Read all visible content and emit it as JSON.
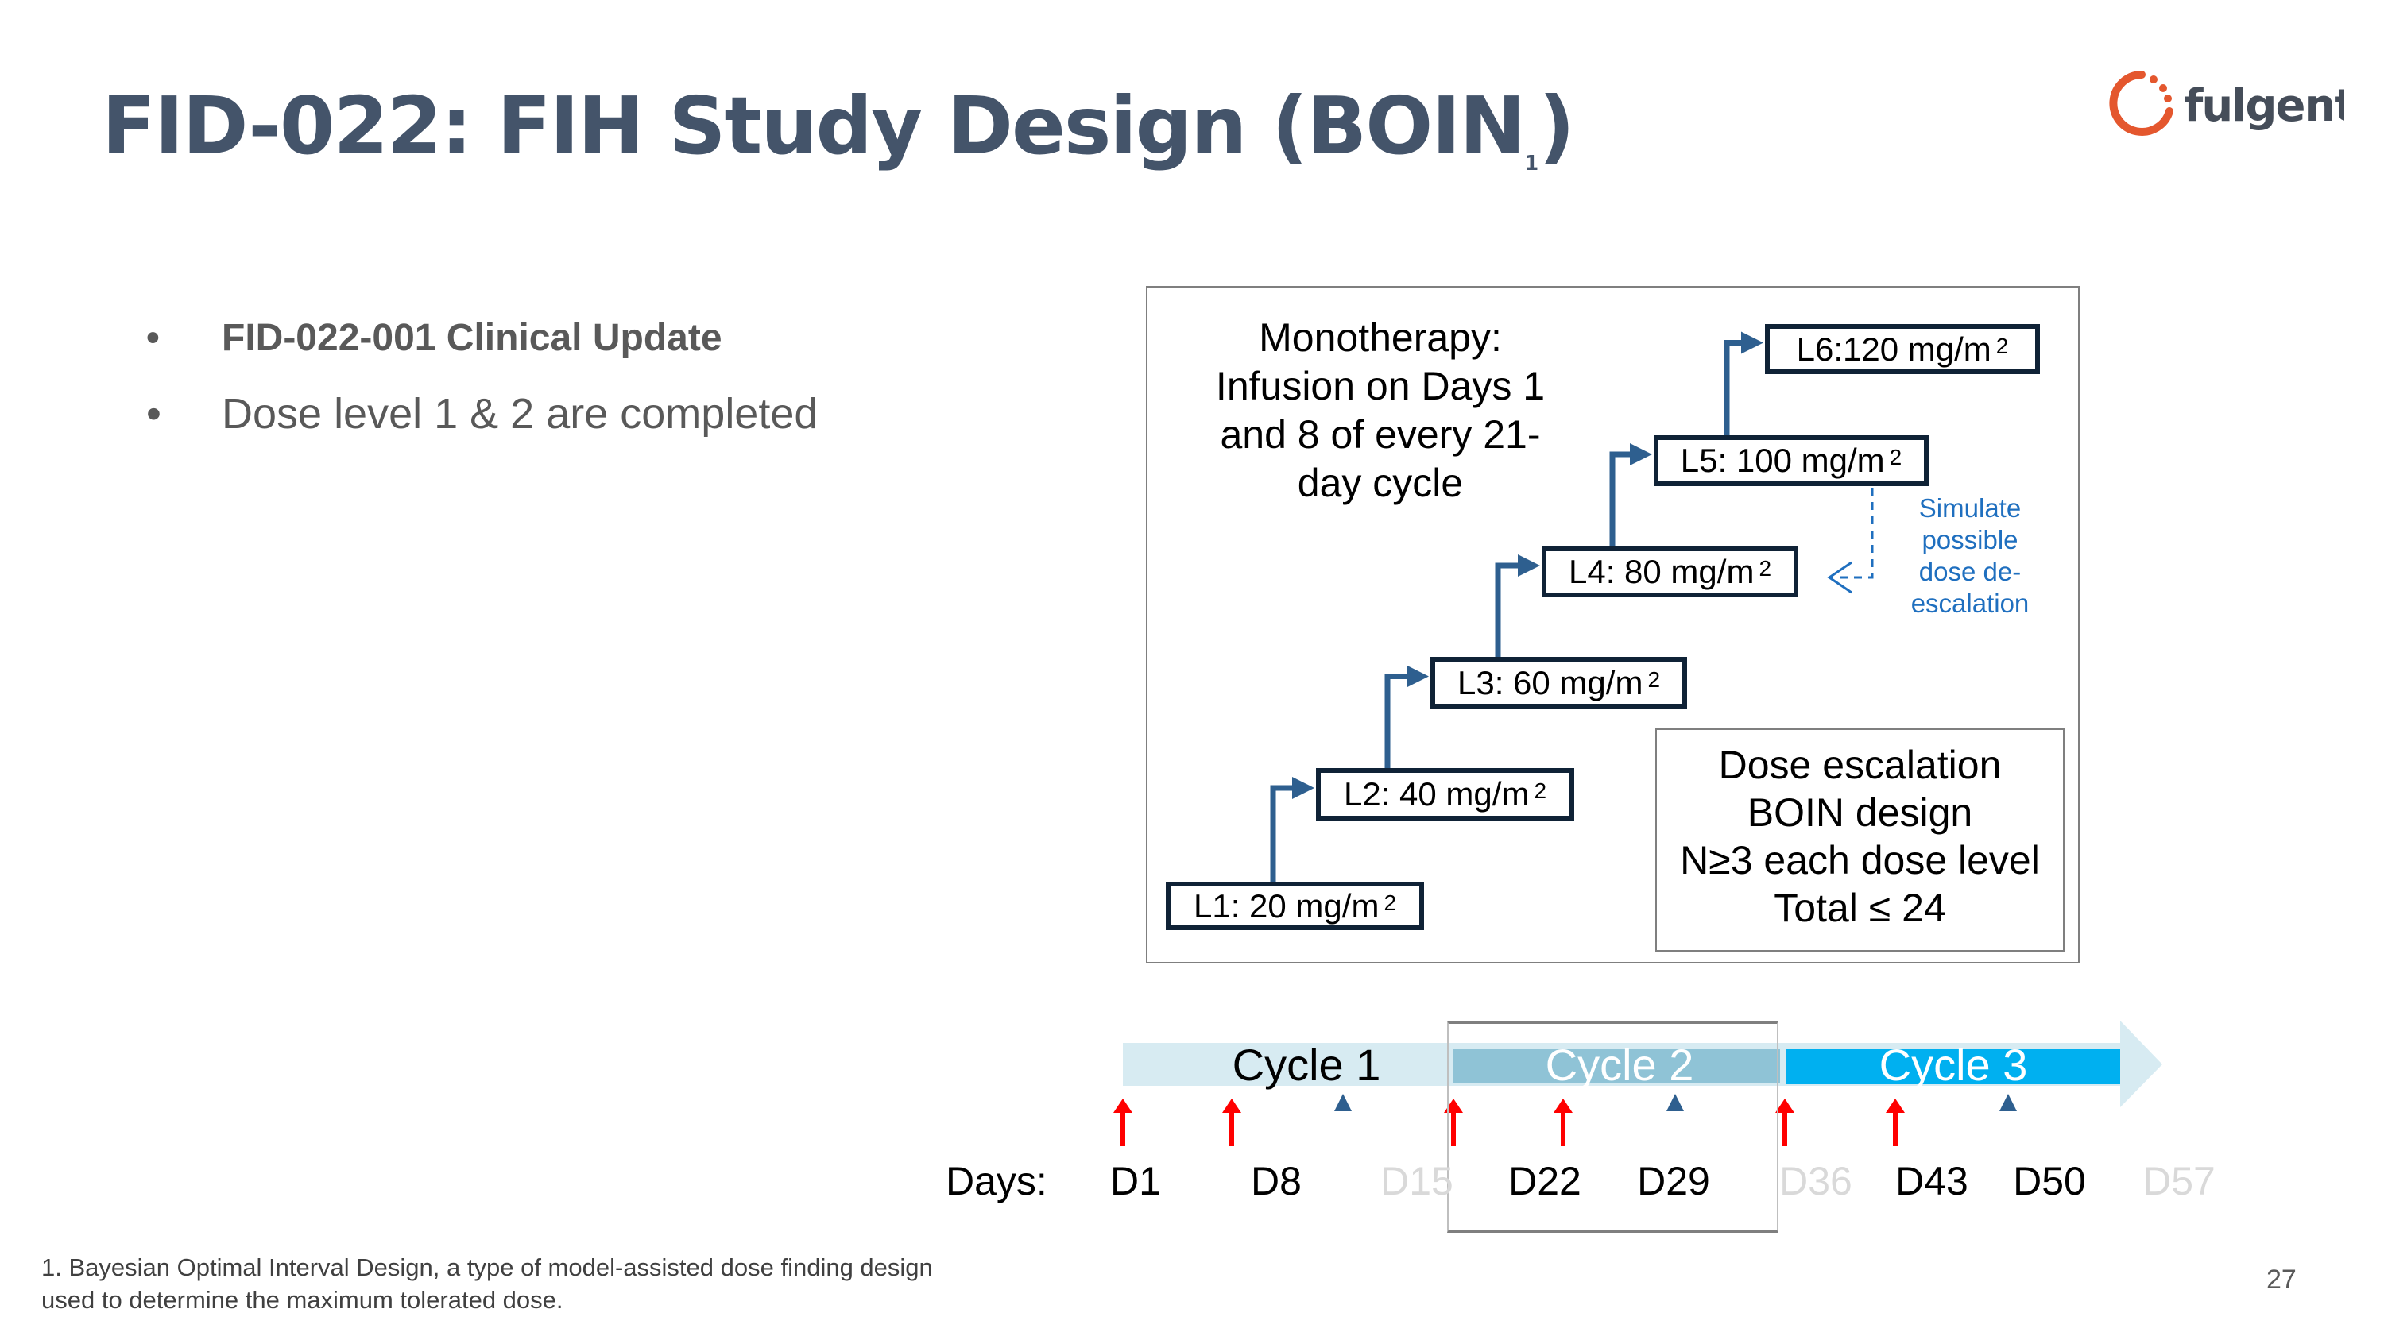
{
  "title": {
    "text": "FID-022: FIH Study Design (BOIN",
    "superscript": "1",
    "close": ")"
  },
  "logo": {
    "text": "fulgent",
    "brand_color": "#e4572e"
  },
  "bullets": [
    {
      "text": "FID-022-001 Clinical Update",
      "bold": true
    },
    {
      "text": "Dose level 1 & 2 are completed",
      "bold": false
    }
  ],
  "diagram": {
    "monotherapy": [
      "Monotherapy:",
      "Infusion on Days 1",
      "and 8 of every 21-",
      "day cycle"
    ],
    "levels": [
      {
        "label": "L1: 20 mg/m",
        "sup": "2"
      },
      {
        "label": "L2: 40 mg/m",
        "sup": "2"
      },
      {
        "label": "L3: 60 mg/m",
        "sup": "2"
      },
      {
        "label": "L4: 80 mg/m",
        "sup": "2"
      },
      {
        "label": "L5: 100 mg/m",
        "sup": "2"
      },
      {
        "label": "L6:120 mg/m",
        "sup": "2"
      }
    ],
    "deescalation_note": [
      "Simulate",
      "possible",
      "dose de-",
      "escalation"
    ],
    "design_box": [
      "Dose escalation",
      "BOIN design",
      "N≥3 each dose level",
      "Total ≤ 24"
    ],
    "arrow_color": "#2e5f8f",
    "note_color": "#1f6fbf"
  },
  "timeline": {
    "cycles": [
      {
        "label": "Cycle 1",
        "color": "#d7ebf2"
      },
      {
        "label": "Cycle 2",
        "color": "#8fc3d6"
      },
      {
        "label": "Cycle 3",
        "color": "#00b0f0"
      }
    ],
    "days_label": "Days:",
    "days": [
      {
        "label": "D1",
        "dimmed": false
      },
      {
        "label": "D8",
        "dimmed": false
      },
      {
        "label": "D15",
        "dimmed": true
      },
      {
        "label": "D22",
        "dimmed": false
      },
      {
        "label": "D29",
        "dimmed": false
      },
      {
        "label": "D36",
        "dimmed": true
      },
      {
        "label": "D43",
        "dimmed": false
      },
      {
        "label": "D50",
        "dimmed": false
      },
      {
        "label": "D57",
        "dimmed": true
      }
    ],
    "infusion_marker_color": "#ff0000",
    "assessment_marker_color": "#2e5f8f"
  },
  "footnote": [
    "1. Bayesian Optimal Interval Design, a type of model-assisted dose finding design",
    "used to determine the maximum tolerated dose."
  ],
  "page_number": "27"
}
